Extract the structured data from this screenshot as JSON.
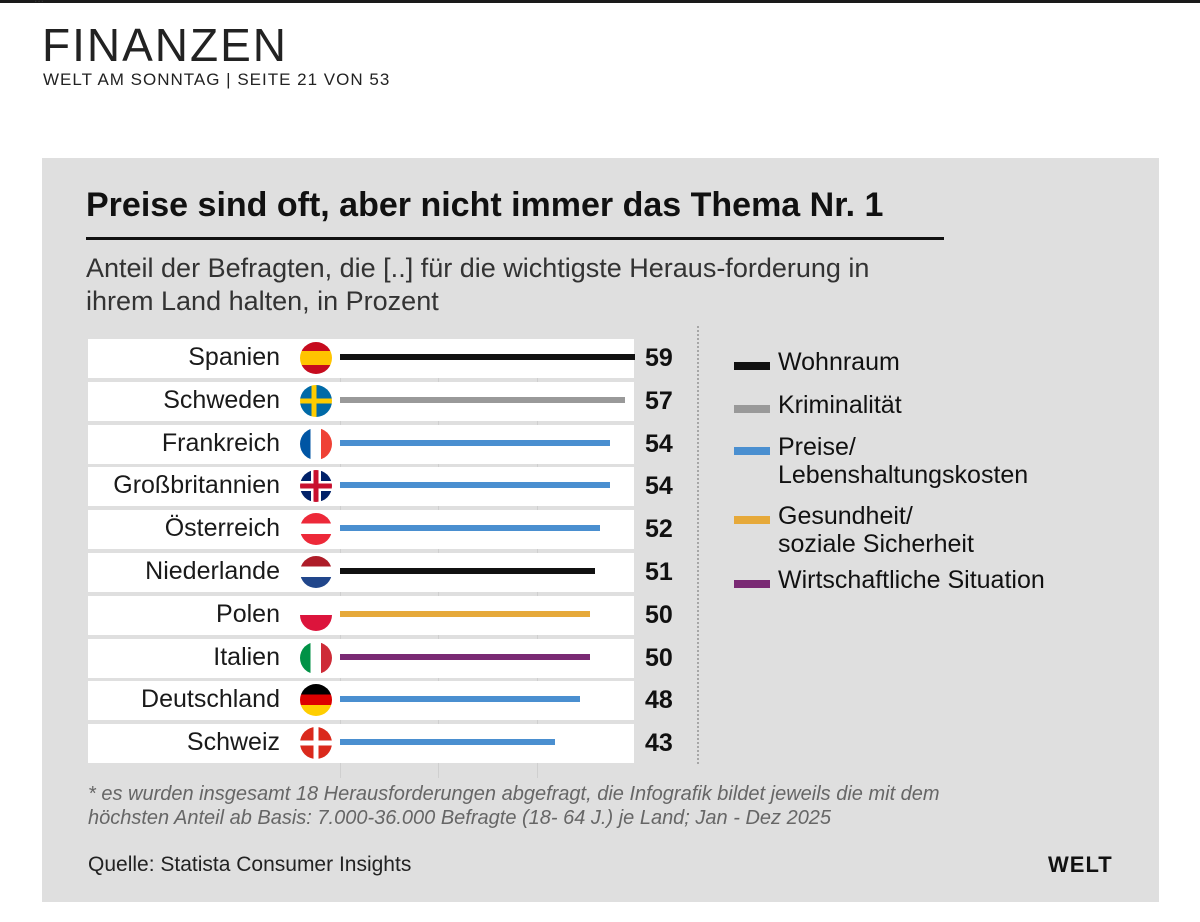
{
  "header": {
    "top_fragment": "...",
    "section": "FINANZEN",
    "publication": "WELT AM SONNTAG | SEITE 21 VON 53"
  },
  "chart_data": {
    "type": "bar",
    "orientation": "horizontal",
    "title": "Preise sind oft, aber nicht immer das Thema Nr. 1",
    "subtitle": "Anteil der Befragten, die [..] für die wichtigste Heraus-forderung in ihrem Land halten, in Prozent",
    "categories": [
      "Spanien",
      "Schweden",
      "Frankreich",
      "Großbritannien",
      "Österreich",
      "Niederlande",
      "Polen",
      "Italien",
      "Deutschland",
      "Schweiz"
    ],
    "values": [
      59,
      57,
      54,
      54,
      52,
      51,
      50,
      50,
      48,
      43
    ],
    "category_topic": [
      "Wohnraum",
      "Kriminalität",
      "Preise/ Lebenshaltungskosten",
      "Preise/ Lebenshaltungskosten",
      "Preise/ Lebenshaltungskosten",
      "Wohnraum",
      "Gesundheit/ soziale Sicherheit",
      "Wirtschaftliche Situation",
      "Preise/ Lebenshaltungskosten",
      "Preise/ Lebenshaltungskosten"
    ],
    "xlim": [
      0,
      60
    ],
    "legend": [
      {
        "label": "Wohnraum",
        "color": "#111111"
      },
      {
        "label": "Kriminalität",
        "color": "#999999"
      },
      {
        "label": "Preise/ Lebenshaltungskosten",
        "color": "#4a8fd0"
      },
      {
        "label": "Gesundheit/ soziale Sicherheit",
        "color": "#e6a93a"
      },
      {
        "label": "Wirtschaftliche Situation",
        "color": "#7a2a74"
      }
    ],
    "legend_position": "right",
    "grid": true
  },
  "footer": {
    "note": "* es wurden insgesamt 18 Herausforderungen abgefragt, die Infografik bildet jeweils die mit dem höchsten Anteil ab Basis: 7.000-36.000 Befragte (18- 64 J.) je Land; Jan - Dez 2025",
    "source": "Quelle: Statista Consumer Insights",
    "logo": "WELT"
  },
  "colors": {
    "panel": "#dfdfdf",
    "rule": "#111111"
  }
}
